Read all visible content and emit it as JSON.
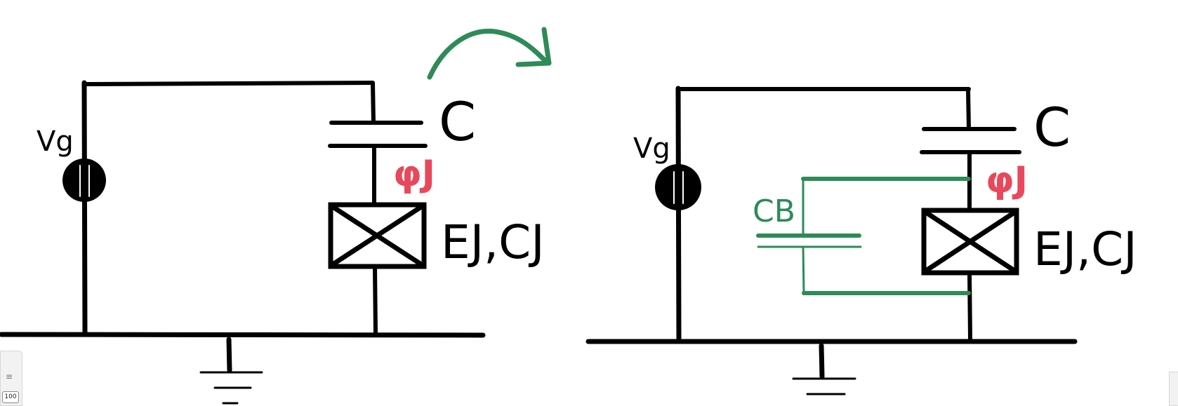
{
  "diagram": {
    "left_circuit": {
      "source_label": "Vg",
      "capacitor_label": "C",
      "phase_label": "φJ",
      "junction_label": "EJ,CJ"
    },
    "right_circuit": {
      "source_label": "Vg",
      "capacitor_label": "C",
      "phase_label": "φJ",
      "junction_label": "EJ,CJ",
      "shunt_capacitor_label": "CB"
    },
    "colors": {
      "ink": "#000000",
      "phase": "#e8485c",
      "added": "#2e8b57"
    }
  },
  "toolbar": {
    "menu_icon": "hamburger-icon",
    "zoom_level": "100"
  }
}
